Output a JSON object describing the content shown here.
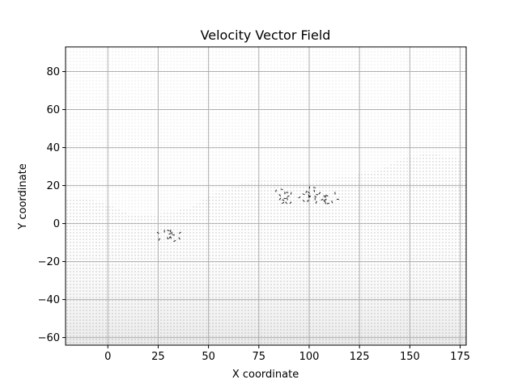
{
  "chart_data": {
    "type": "quiver",
    "title": "Velocity Vector Field",
    "xlabel": "X coordinate",
    "ylabel": "Y coordinate",
    "xlim": [
      -21,
      178
    ],
    "ylim": [
      -64,
      93
    ],
    "xticks": [
      0,
      25,
      50,
      75,
      100,
      125,
      150,
      175
    ],
    "xtick_labels": [
      "0",
      "25",
      "50",
      "75",
      "100",
      "125",
      "150",
      "175"
    ],
    "yticks": [
      -60,
      -40,
      -20,
      0,
      20,
      40,
      60,
      80
    ],
    "ytick_labels": [
      "−60",
      "−40",
      "−20",
      "0",
      "20",
      "40",
      "60",
      "80"
    ],
    "grid": true,
    "grid_spacing": 1,
    "field_region": {
      "x": [
        -21,
        178
      ],
      "y": [
        -64,
        93
      ]
    },
    "upper_region_upper_edge": [
      [
        -21,
        13
      ],
      [
        -10,
        13
      ],
      [
        0,
        10
      ],
      [
        10,
        5
      ],
      [
        25,
        5
      ],
      [
        40,
        8
      ],
      [
        55,
        17
      ],
      [
        75,
        24
      ],
      [
        100,
        22
      ],
      [
        120,
        25
      ],
      [
        135,
        28
      ],
      [
        145,
        34
      ],
      [
        160,
        37
      ],
      [
        175,
        34
      ]
    ],
    "turbulence_clusters": [
      {
        "x": 31,
        "y": -6
      },
      {
        "x": 88,
        "y": 14
      },
      {
        "x": 100,
        "y": 15
      },
      {
        "x": 108,
        "y": 13
      }
    ],
    "colors": {
      "arrow": "#1a1a1a",
      "grid": "#b0b0b0",
      "axes": "#000000"
    }
  }
}
